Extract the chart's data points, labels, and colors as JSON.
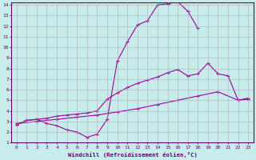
{
  "xlabel": "Windchill (Refroidissement éolien,°C)",
  "bg_color": "#c8ecec",
  "line_color": "#990099",
  "grid_color": "#b0b0b0",
  "xlim": [
    -0.5,
    23.5
  ],
  "ylim": [
    1,
    14.2
  ],
  "xticks": [
    0,
    1,
    2,
    3,
    4,
    5,
    6,
    7,
    8,
    9,
    10,
    11,
    12,
    13,
    14,
    15,
    16,
    17,
    18,
    19,
    20,
    21,
    22,
    23
  ],
  "yticks": [
    1,
    2,
    3,
    4,
    5,
    6,
    7,
    8,
    9,
    10,
    11,
    12,
    13,
    14
  ],
  "line_upper_x": [
    0,
    1,
    2,
    3,
    4,
    5,
    6,
    7,
    8,
    9,
    10,
    11,
    12,
    13,
    14,
    15,
    16,
    17,
    18
  ],
  "line_upper_y": [
    2.7,
    3.1,
    3.2,
    2.8,
    2.6,
    2.2,
    2.0,
    1.5,
    1.8,
    3.2,
    8.7,
    10.5,
    12.1,
    12.5,
    14.0,
    14.1,
    14.3,
    13.4,
    11.8
  ],
  "line_mid_x": [
    0,
    1,
    2,
    3,
    4,
    5,
    6,
    7,
    8,
    9,
    10,
    11,
    12,
    13,
    14,
    15,
    16,
    17,
    18,
    19,
    20,
    21,
    22,
    23
  ],
  "line_mid_y": [
    2.7,
    3.1,
    3.2,
    3.3,
    3.5,
    3.6,
    3.7,
    3.8,
    4.0,
    5.1,
    5.7,
    6.2,
    6.6,
    6.9,
    7.2,
    7.6,
    7.9,
    7.3,
    7.5,
    8.5,
    7.5,
    7.3,
    5.0,
    5.1
  ],
  "line_low_x": [
    0,
    2,
    4,
    6,
    8,
    10,
    12,
    14,
    16,
    18,
    20,
    22,
    23
  ],
  "line_low_y": [
    2.8,
    3.0,
    3.2,
    3.4,
    3.6,
    3.9,
    4.2,
    4.6,
    5.0,
    5.4,
    5.8,
    5.0,
    5.2
  ]
}
